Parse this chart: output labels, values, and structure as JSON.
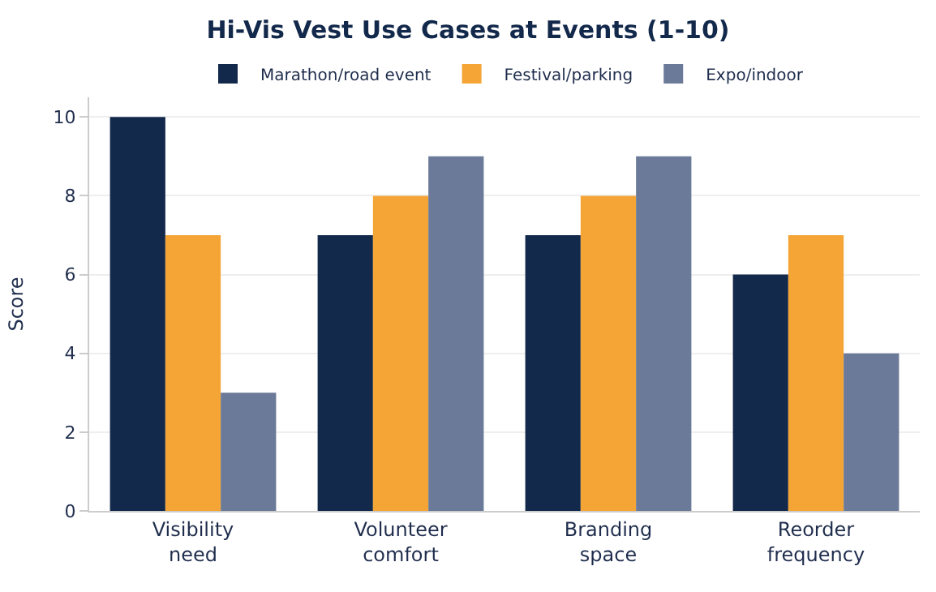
{
  "chart_data": {
    "type": "bar",
    "title": "Hi-Vis Vest Use Cases at Events (1-10)",
    "ylabel": "Score",
    "categories": [
      "Visibility need",
      "Volunteer comfort",
      "Branding space",
      "Reorder frequency"
    ],
    "series": [
      {
        "name": "Marathon/road event",
        "color": "#13294b",
        "values": [
          10,
          7,
          7,
          6
        ]
      },
      {
        "name": "Festival/parking",
        "color": "#f4a535",
        "values": [
          7,
          8,
          8,
          7
        ]
      },
      {
        "name": "Expo/indoor",
        "color": "#6b7a99",
        "values": [
          3,
          9,
          9,
          4
        ]
      }
    ],
    "ylim": [
      0,
      10.5
    ],
    "yticks": [
      0,
      2,
      4,
      6,
      8,
      10
    ],
    "grid": "y",
    "legend": "top"
  }
}
